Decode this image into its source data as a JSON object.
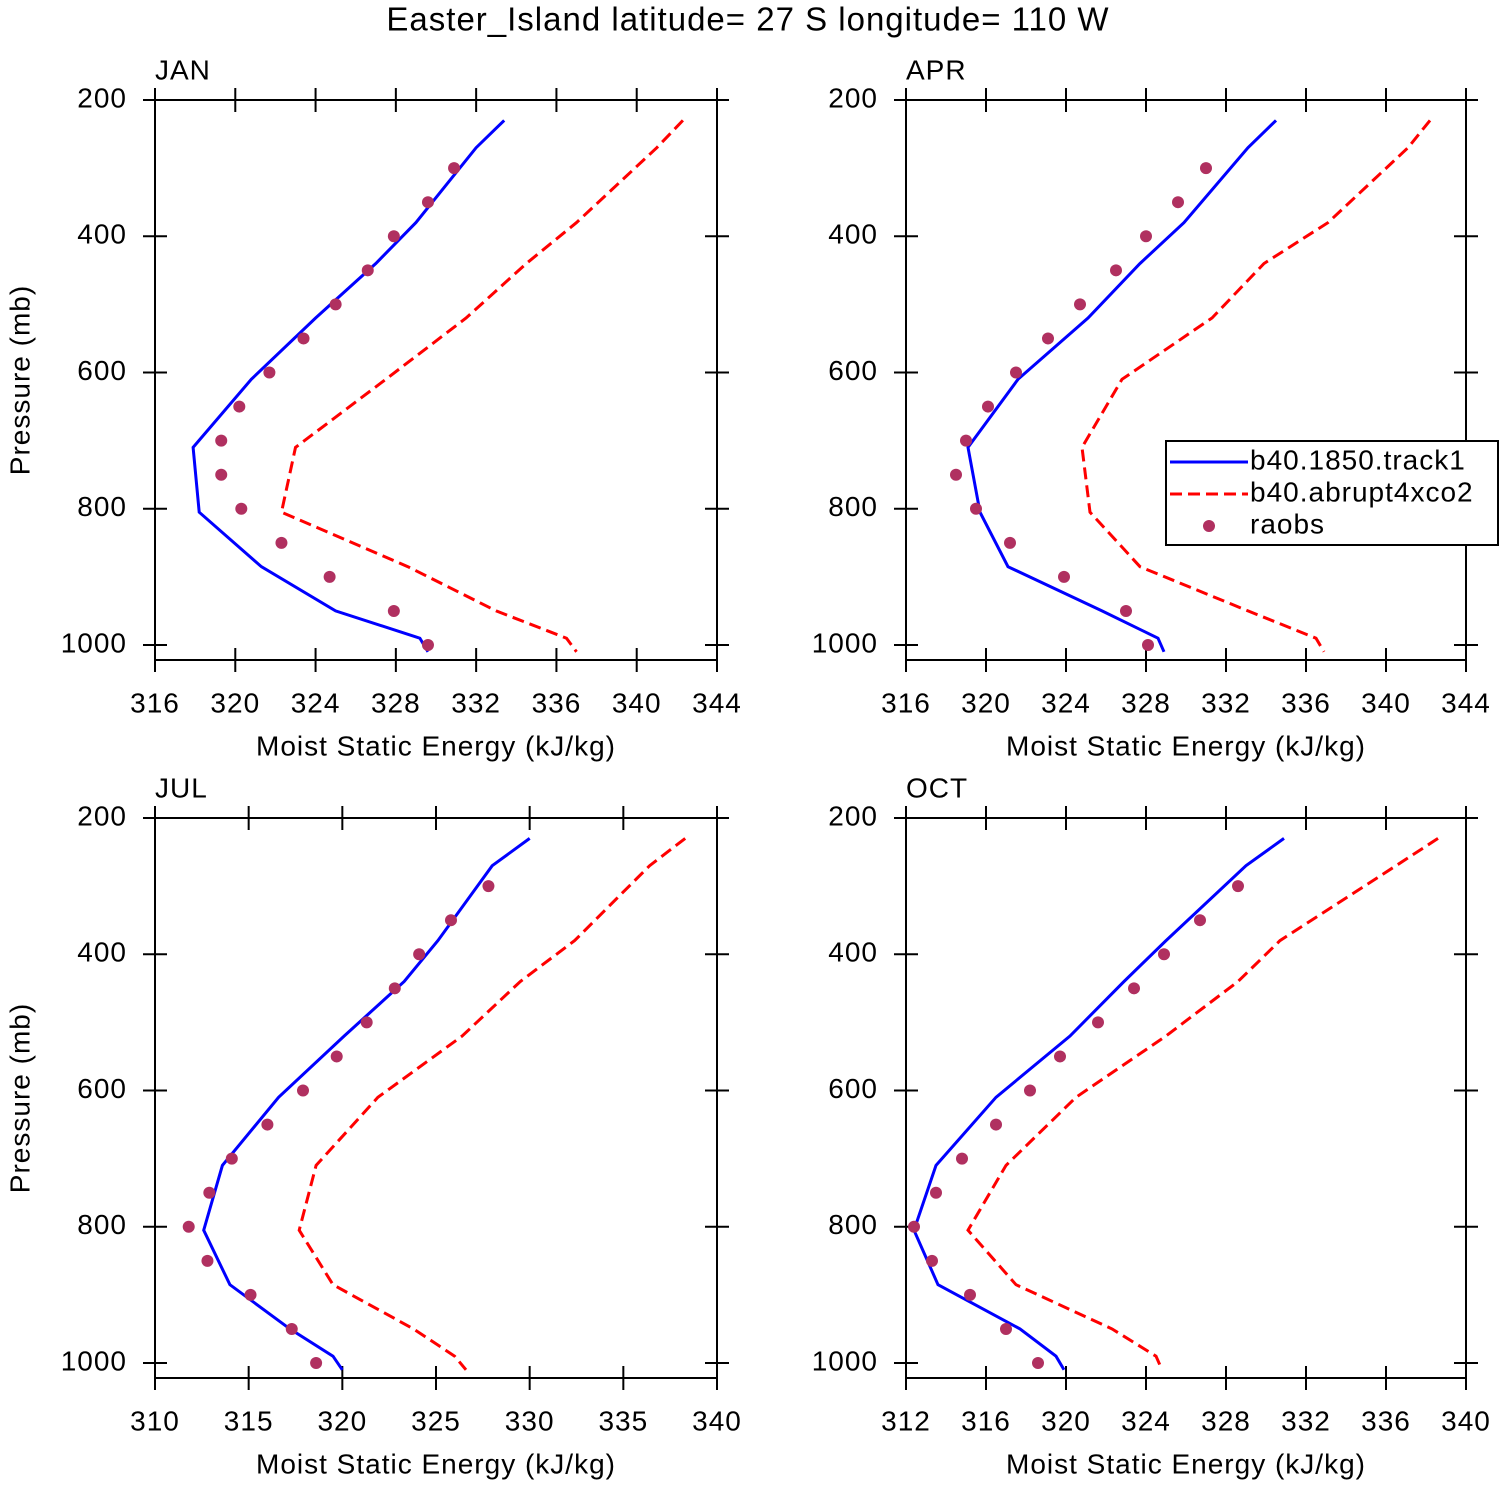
{
  "title": "Easter_Island  latitude= 27 S longitude= 110 W",
  "chart_data": [
    {
      "type": "line",
      "title": "JAN",
      "xlabel": "Moist Static Energy (kJ/kg)",
      "ylabel": "Pressure (mb)",
      "xlim": [
        316,
        344
      ],
      "xticks": [
        316,
        320,
        324,
        328,
        332,
        336,
        340,
        344
      ],
      "ylim": [
        200,
        1022
      ],
      "yticks": [
        200,
        400,
        600,
        800,
        1000
      ],
      "y_inverted": true,
      "series": [
        {
          "type": "line",
          "style": "solid",
          "color": "#0000ff",
          "y": [
            230,
            270,
            380,
            440,
            520,
            610,
            710,
            805,
            885,
            950,
            990,
            1010
          ],
          "values": [
            333.4,
            332.0,
            329.0,
            327.0,
            324.0,
            320.8,
            317.9,
            318.2,
            321.3,
            325.0,
            329.2,
            329.6
          ]
        },
        {
          "type": "line",
          "style": "dashed",
          "color": "#ff0000",
          "y": [
            230,
            270,
            380,
            440,
            520,
            610,
            710,
            805,
            885,
            950,
            990,
            1010
          ],
          "values": [
            342.3,
            341.0,
            337.0,
            334.5,
            331.5,
            327.5,
            323.0,
            322.3,
            328.6,
            333.0,
            336.5,
            337.0
          ]
        },
        {
          "type": "scatter",
          "color": "#b03060",
          "y": [
            300,
            350,
            400,
            450,
            500,
            550,
            600,
            650,
            700,
            750,
            800,
            850,
            900,
            950,
            1000
          ],
          "values": [
            330.9,
            329.6,
            327.9,
            326.6,
            325.0,
            323.4,
            321.7,
            320.2,
            319.3,
            319.3,
            320.3,
            322.3,
            324.7,
            327.9,
            329.6
          ]
        }
      ]
    },
    {
      "type": "line",
      "title": "APR",
      "xlabel": "Moist Static Energy (kJ/kg)",
      "xlim": [
        316,
        344
      ],
      "xticks": [
        316,
        320,
        324,
        328,
        332,
        336,
        340,
        344
      ],
      "ylim": [
        200,
        1022
      ],
      "yticks": [
        200,
        400,
        600,
        800,
        1000
      ],
      "y_inverted": true,
      "legend": "right",
      "series": [
        {
          "name": "b40.1850.track1",
          "type": "line",
          "style": "solid",
          "color": "#0000ff",
          "y": [
            230,
            270,
            380,
            440,
            520,
            610,
            710,
            805,
            885,
            950,
            990,
            1010
          ],
          "values": [
            334.5,
            333.1,
            329.9,
            327.7,
            325.1,
            321.6,
            319.1,
            319.7,
            321.1,
            325.8,
            328.6,
            328.9
          ]
        },
        {
          "name": "b40.abrupt4xco2",
          "type": "line",
          "style": "dashed",
          "color": "#ff0000",
          "y": [
            230,
            270,
            380,
            440,
            520,
            610,
            710,
            805,
            885,
            950,
            990,
            1010
          ],
          "values": [
            342.2,
            341.1,
            337.1,
            333.9,
            331.3,
            326.8,
            324.8,
            325.2,
            327.7,
            333.1,
            336.5,
            336.9
          ]
        },
        {
          "name": "raobs",
          "type": "scatter",
          "color": "#b03060",
          "y": [
            300,
            350,
            400,
            450,
            500,
            550,
            600,
            650,
            700,
            750,
            800,
            850,
            900,
            950,
            1000
          ],
          "values": [
            331.0,
            329.6,
            328.0,
            326.5,
            324.7,
            323.1,
            321.5,
            320.1,
            319.0,
            318.5,
            319.5,
            321.2,
            323.9,
            327.0,
            328.1
          ]
        }
      ]
    },
    {
      "type": "line",
      "title": "JUL",
      "xlabel": "Moist Static Energy (kJ/kg)",
      "ylabel": "Pressure (mb)",
      "xlim": [
        310,
        340
      ],
      "xticks": [
        310,
        315,
        320,
        325,
        330,
        335,
        340
      ],
      "ylim": [
        200,
        1022
      ],
      "yticks": [
        200,
        400,
        600,
        800,
        1000
      ],
      "y_inverted": true,
      "series": [
        {
          "type": "line",
          "style": "solid",
          "color": "#0000ff",
          "y": [
            230,
            270,
            380,
            440,
            520,
            610,
            710,
            805,
            885,
            950,
            990,
            1010
          ],
          "values": [
            330.0,
            328.0,
            325.1,
            323.3,
            320.1,
            316.6,
            313.6,
            312.6,
            314.0,
            317.2,
            319.5,
            320.0
          ]
        },
        {
          "type": "line",
          "style": "dashed",
          "color": "#ff0000",
          "y": [
            230,
            270,
            380,
            440,
            520,
            610,
            710,
            805,
            885,
            950,
            990,
            1010
          ],
          "values": [
            338.3,
            336.4,
            332.4,
            329.5,
            326.4,
            321.9,
            318.6,
            317.7,
            319.5,
            323.8,
            326.0,
            326.6
          ]
        },
        {
          "type": "scatter",
          "color": "#b03060",
          "y": [
            300,
            350,
            400,
            450,
            500,
            550,
            600,
            650,
            700,
            750,
            800,
            850,
            900,
            950,
            1000
          ],
          "values": [
            327.8,
            325.8,
            324.1,
            322.8,
            321.3,
            319.7,
            317.9,
            316.0,
            314.1,
            312.9,
            311.8,
            312.8,
            315.1,
            317.3,
            318.6
          ]
        }
      ]
    },
    {
      "type": "line",
      "title": "OCT",
      "xlabel": "Moist Static Energy (kJ/kg)",
      "xlim": [
        312,
        340
      ],
      "xticks": [
        312,
        316,
        320,
        324,
        328,
        332,
        336,
        340
      ],
      "ylim": [
        200,
        1022
      ],
      "yticks": [
        200,
        400,
        600,
        800,
        1000
      ],
      "y_inverted": true,
      "series": [
        {
          "type": "line",
          "style": "solid",
          "color": "#0000ff",
          "y": [
            230,
            270,
            380,
            440,
            520,
            610,
            710,
            805,
            885,
            950,
            990,
            1010
          ],
          "values": [
            330.9,
            329.0,
            325.0,
            322.9,
            320.2,
            316.5,
            313.5,
            312.4,
            313.6,
            317.7,
            319.5,
            319.9
          ]
        },
        {
          "type": "line",
          "style": "dashed",
          "color": "#ff0000",
          "y": [
            230,
            270,
            380,
            440,
            520,
            610,
            710,
            805,
            885,
            950,
            990,
            1010
          ],
          "values": [
            338.6,
            336.5,
            330.7,
            328.6,
            325.0,
            320.5,
            317.0,
            315.1,
            317.5,
            322.3,
            324.5,
            324.8
          ]
        },
        {
          "type": "scatter",
          "color": "#b03060",
          "y": [
            300,
            350,
            400,
            450,
            500,
            550,
            600,
            650,
            700,
            750,
            800,
            850,
            900,
            950,
            1000
          ],
          "values": [
            328.6,
            326.7,
            324.9,
            323.4,
            321.6,
            319.7,
            318.2,
            316.5,
            314.8,
            313.5,
            312.4,
            313.3,
            315.2,
            317.0,
            318.6
          ]
        }
      ]
    }
  ]
}
